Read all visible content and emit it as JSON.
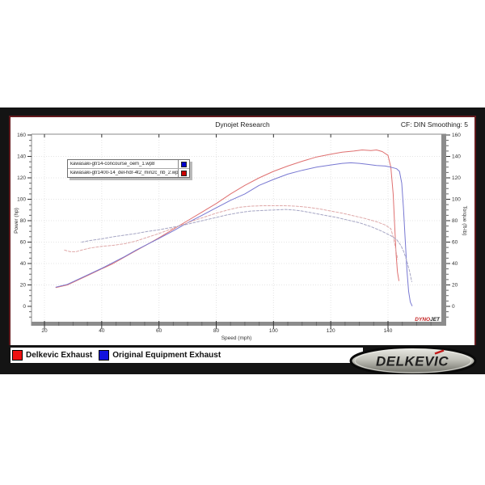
{
  "header": {
    "title": "Dynojet Research",
    "correction": "CF: DIN  Smoothing: 5"
  },
  "legend_box": {
    "entries": [
      {
        "label": "kawasaki-gtr14-concourse_oem_1.wp8",
        "color": "#0000cc"
      },
      {
        "label": "kawasaki-gtr1400-14_del-hdr-4t2_min2c_nb_2.wp8",
        "color": "#cc0000"
      }
    ]
  },
  "chart_data": {
    "type": "line",
    "title": "Dynojet Research",
    "xlabel": "Speed (mph)",
    "ylabel_left": "Power (hp)",
    "ylabel_right": "Torque (ft-lb)",
    "xlim": [
      15.5,
      158.5
    ],
    "ylim": [
      -15,
      160
    ],
    "x_ticks": [
      20,
      40,
      60,
      80,
      100,
      120,
      140
    ],
    "y_ticks": [
      0,
      20,
      40,
      60,
      80,
      100,
      120,
      140,
      160
    ],
    "minor_tick_step": 5,
    "grid": true,
    "legend_position": "top-left",
    "series": [
      {
        "id": "delkevic-power",
        "name": "Delkevic Exhaust - Power (hp)",
        "color": "#df7070",
        "style": "solid",
        "points": [
          [
            24,
            17.5
          ],
          [
            28,
            20
          ],
          [
            32,
            25
          ],
          [
            36,
            30
          ],
          [
            40,
            35
          ],
          [
            44,
            40
          ],
          [
            48,
            46
          ],
          [
            52,
            52
          ],
          [
            56,
            58
          ],
          [
            60,
            64
          ],
          [
            65,
            72
          ],
          [
            70,
            80
          ],
          [
            75,
            88
          ],
          [
            80,
            96
          ],
          [
            85,
            105
          ],
          [
            90,
            113
          ],
          [
            95,
            120
          ],
          [
            100,
            126
          ],
          [
            105,
            131
          ],
          [
            110,
            135.5
          ],
          [
            115,
            139.5
          ],
          [
            120,
            142
          ],
          [
            124,
            144
          ],
          [
            128,
            145
          ],
          [
            131,
            146
          ],
          [
            134,
            145.5
          ],
          [
            136,
            146
          ],
          [
            138,
            144.5
          ],
          [
            140,
            141
          ],
          [
            141,
            130
          ],
          [
            141.8,
            105
          ],
          [
            142.3,
            78
          ],
          [
            142.8,
            50
          ],
          [
            143.3,
            32
          ],
          [
            143.8,
            24
          ]
        ]
      },
      {
        "id": "oem-power",
        "name": "Original Equipment Exhaust - Power (hp)",
        "color": "#7878d2",
        "style": "solid",
        "points": [
          [
            24,
            18
          ],
          [
            28,
            20.5
          ],
          [
            32,
            25.5
          ],
          [
            36,
            30.5
          ],
          [
            40,
            35.5
          ],
          [
            44,
            41
          ],
          [
            48,
            46.5
          ],
          [
            52,
            52.5
          ],
          [
            56,
            58
          ],
          [
            60,
            63.5
          ],
          [
            65,
            70.5
          ],
          [
            70,
            78
          ],
          [
            75,
            85
          ],
          [
            80,
            92
          ],
          [
            85,
            99
          ],
          [
            90,
            105
          ],
          [
            95,
            113
          ],
          [
            100,
            118.5
          ],
          [
            105,
            123.5
          ],
          [
            110,
            127
          ],
          [
            115,
            130
          ],
          [
            120,
            132
          ],
          [
            124,
            133.5
          ],
          [
            127,
            134
          ],
          [
            130,
            133.5
          ],
          [
            133,
            132.5
          ],
          [
            136,
            131.5
          ],
          [
            139,
            131
          ],
          [
            141,
            130
          ],
          [
            143,
            128.5
          ],
          [
            144,
            126
          ],
          [
            144.8,
            115
          ],
          [
            145.4,
            92
          ],
          [
            146,
            62
          ],
          [
            146.6,
            34
          ],
          [
            147.2,
            14
          ],
          [
            147.8,
            4
          ],
          [
            148.4,
            0.5
          ]
        ]
      },
      {
        "id": "delkevic-torque",
        "name": "Delkevic Exhaust - Torque (ft-lb)",
        "color": "#dfa8a8",
        "style": "dashed",
        "points": [
          [
            27,
            52.5
          ],
          [
            29,
            51
          ],
          [
            31,
            51
          ],
          [
            33,
            52.5
          ],
          [
            36,
            54.5
          ],
          [
            40,
            56
          ],
          [
            44,
            57
          ],
          [
            48,
            58.5
          ],
          [
            52,
            61
          ],
          [
            56,
            64.5
          ],
          [
            60,
            68
          ],
          [
            64,
            72
          ],
          [
            68,
            76
          ],
          [
            72,
            80
          ],
          [
            76,
            83.5
          ],
          [
            80,
            87
          ],
          [
            84,
            90
          ],
          [
            88,
            92.5
          ],
          [
            92,
            93.5
          ],
          [
            96,
            94
          ],
          [
            100,
            94
          ],
          [
            104,
            94
          ],
          [
            108,
            93.5
          ],
          [
            112,
            92.5
          ],
          [
            116,
            91
          ],
          [
            120,
            89
          ],
          [
            124,
            87
          ],
          [
            128,
            84.5
          ],
          [
            132,
            82
          ],
          [
            136,
            79
          ],
          [
            139,
            76
          ],
          [
            141,
            72.5
          ],
          [
            142,
            63
          ],
          [
            142.7,
            53
          ],
          [
            143.4,
            44
          ]
        ]
      },
      {
        "id": "oem-torque",
        "name": "Original Equipment Exhaust - Torque (ft-lb)",
        "color": "#a6a6c4",
        "style": "dashed",
        "points": [
          [
            33,
            60
          ],
          [
            36,
            61.5
          ],
          [
            40,
            63
          ],
          [
            44,
            65
          ],
          [
            48,
            66.5
          ],
          [
            52,
            68
          ],
          [
            56,
            70
          ],
          [
            60,
            71.5
          ],
          [
            64,
            73.5
          ],
          [
            68,
            75.5
          ],
          [
            72,
            78
          ],
          [
            76,
            80.5
          ],
          [
            80,
            83
          ],
          [
            84,
            85.5
          ],
          [
            88,
            87.5
          ],
          [
            92,
            89
          ],
          [
            96,
            89.5
          ],
          [
            100,
            90
          ],
          [
            104,
            90.5
          ],
          [
            107,
            90
          ],
          [
            110,
            89
          ],
          [
            114,
            87
          ],
          [
            118,
            85
          ],
          [
            122,
            83
          ],
          [
            126,
            80.5
          ],
          [
            130,
            78
          ],
          [
            134,
            74.5
          ],
          [
            138,
            70
          ],
          [
            141,
            66
          ],
          [
            143,
            62.5
          ],
          [
            144.5,
            57
          ],
          [
            145.5,
            51
          ],
          [
            146.5,
            43
          ],
          [
            147.5,
            33
          ],
          [
            148.3,
            23
          ]
        ]
      }
    ]
  },
  "bottom_legend": {
    "items": [
      {
        "label": "Delkevic Exhaust",
        "color": "#ee1111"
      },
      {
        "label": "Original Equipment Exhaust",
        "color": "#1111dd"
      }
    ]
  },
  "watermarks": {
    "dynojet_red": "DYNO",
    "dynojet_dark": "JET",
    "delkevic": "DELKEVIC"
  },
  "colors": {
    "frame": "#141414",
    "frame_border": "#641a1e",
    "axis_bar": "#8c8c8c"
  }
}
